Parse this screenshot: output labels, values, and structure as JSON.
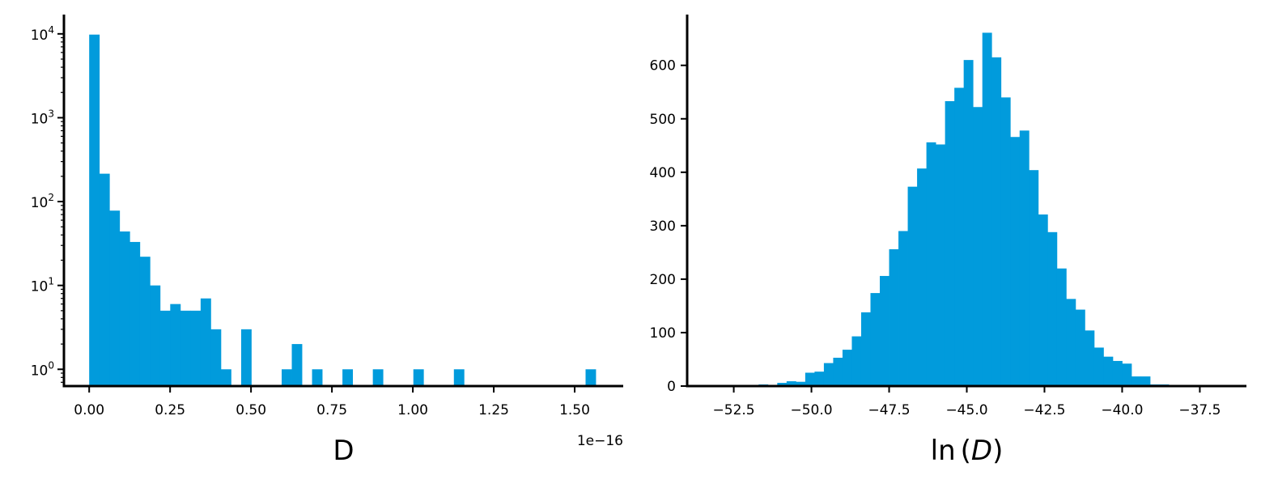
{
  "colors": {
    "bar": "#019bdc",
    "axis": "#000000",
    "background": "#ffffff"
  },
  "chart_data": [
    {
      "type": "bar",
      "subtype": "histogram",
      "scale_y": "log",
      "xlabel": "D",
      "x_offset_label": "1e−16",
      "grid": false,
      "legend": "none",
      "xlim": [
        -0.078,
        1.65
      ],
      "ylim_log10": [
        -0.2,
        4.23
      ],
      "bin_width": 0.0313,
      "x_start": 0.0,
      "counts": [
        9800,
        215,
        78,
        44,
        33,
        22,
        10,
        5,
        6,
        5,
        5,
        7,
        3,
        1,
        0,
        3,
        0,
        0,
        0,
        1,
        2,
        0,
        1,
        0,
        0,
        1,
        0,
        0,
        1,
        0,
        0,
        0,
        1,
        0,
        0,
        0,
        1,
        0,
        0,
        0,
        0,
        0,
        0,
        0,
        0,
        0,
        0,
        0,
        0,
        1
      ],
      "x_ticks": [
        0.0,
        0.25,
        0.5,
        0.75,
        1.0,
        1.25,
        1.5
      ],
      "x_tick_labels": [
        "0.00",
        "0.25",
        "0.50",
        "0.75",
        "1.00",
        "1.25",
        "1.50"
      ],
      "y_ticks": [
        0,
        1,
        2,
        3,
        4
      ],
      "y_tick_base": "10"
    },
    {
      "type": "bar",
      "subtype": "histogram",
      "scale_y": "linear",
      "xlabel": "ln (D)",
      "xlabel_prefix": "ln",
      "xlabel_var": "D",
      "grid": false,
      "legend": "none",
      "xlim": [
        -54.0,
        -36.0
      ],
      "ylim": [
        0,
        695
      ],
      "bin_edges_start": -53.5,
      "bin_width": 0.3,
      "counts": [
        0,
        0,
        0,
        0,
        1,
        1,
        3,
        2,
        6,
        9,
        8,
        25,
        27,
        43,
        53,
        68,
        93,
        138,
        174,
        206,
        256,
        290,
        373,
        407,
        456,
        452,
        533,
        558,
        610,
        522,
        661,
        615,
        540,
        466,
        478,
        404,
        321,
        288,
        220,
        163,
        143,
        104,
        72,
        55,
        47,
        42,
        18,
        18,
        3,
        3,
        1
      ],
      "x_ticks": [
        -52.5,
        -50.0,
        -47.5,
        -45.0,
        -42.5,
        -40.0,
        -37.5
      ],
      "x_tick_labels": [
        "−52.5",
        "−50.0",
        "−47.5",
        "−45.0",
        "−42.5",
        "−40.0",
        "−37.5"
      ],
      "y_ticks": [
        0,
        100,
        200,
        300,
        400,
        500,
        600
      ],
      "y_tick_labels": [
        "0",
        "100",
        "200",
        "300",
        "400",
        "500",
        "600"
      ]
    }
  ]
}
